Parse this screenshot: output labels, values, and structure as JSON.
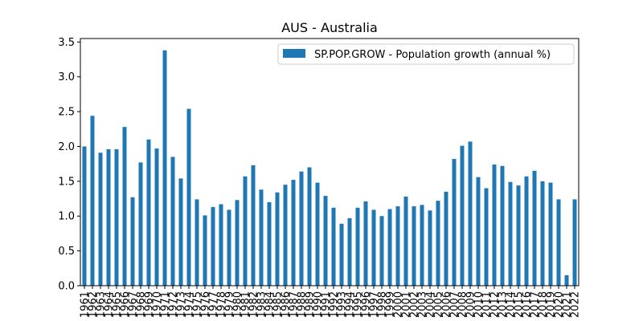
{
  "chart_data": {
    "type": "bar",
    "title": "AUS - Australia",
    "xlabel": "",
    "ylabel": "",
    "ylim": [
      0,
      3.55
    ],
    "yticks": [
      "0.0",
      "0.5",
      "1.0",
      "1.5",
      "2.0",
      "2.5",
      "3.0",
      "3.5"
    ],
    "grid": false,
    "legend_position": "top-right",
    "categories": [
      "1961",
      "1962",
      "1963",
      "1964",
      "1965",
      "1966",
      "1967",
      "1968",
      "1969",
      "1970",
      "1971",
      "1972",
      "1973",
      "1974",
      "1975",
      "1976",
      "1977",
      "1978",
      "1979",
      "1980",
      "1981",
      "1982",
      "1983",
      "1984",
      "1985",
      "1986",
      "1987",
      "1988",
      "1989",
      "1990",
      "1991",
      "1992",
      "1993",
      "1994",
      "1995",
      "1996",
      "1997",
      "1998",
      "1999",
      "2000",
      "2001",
      "2002",
      "2003",
      "2004",
      "2005",
      "2006",
      "2007",
      "2008",
      "2009",
      "2010",
      "2011",
      "2012",
      "2013",
      "2014",
      "2015",
      "2016",
      "2017",
      "2018",
      "2019",
      "2020",
      "2021",
      "2022"
    ],
    "series": [
      {
        "name": "SP.POP.GROW - Population growth (annual %)",
        "color": "#1f77b4",
        "values": [
          2.0,
          2.44,
          1.91,
          1.96,
          1.96,
          2.28,
          1.27,
          1.77,
          2.1,
          1.97,
          3.38,
          1.85,
          1.54,
          2.54,
          1.24,
          1.01,
          1.13,
          1.17,
          1.09,
          1.23,
          1.57,
          1.73,
          1.38,
          1.2,
          1.34,
          1.45,
          1.52,
          1.64,
          1.7,
          1.48,
          1.29,
          1.12,
          0.89,
          0.97,
          1.12,
          1.21,
          1.09,
          1.0,
          1.1,
          1.14,
          1.28,
          1.14,
          1.16,
          1.08,
          1.22,
          1.35,
          1.82,
          2.01,
          2.07,
          1.56,
          1.4,
          1.74,
          1.72,
          1.49,
          1.44,
          1.57,
          1.65,
          1.5,
          1.48,
          1.24,
          0.15,
          1.24
        ]
      }
    ]
  }
}
